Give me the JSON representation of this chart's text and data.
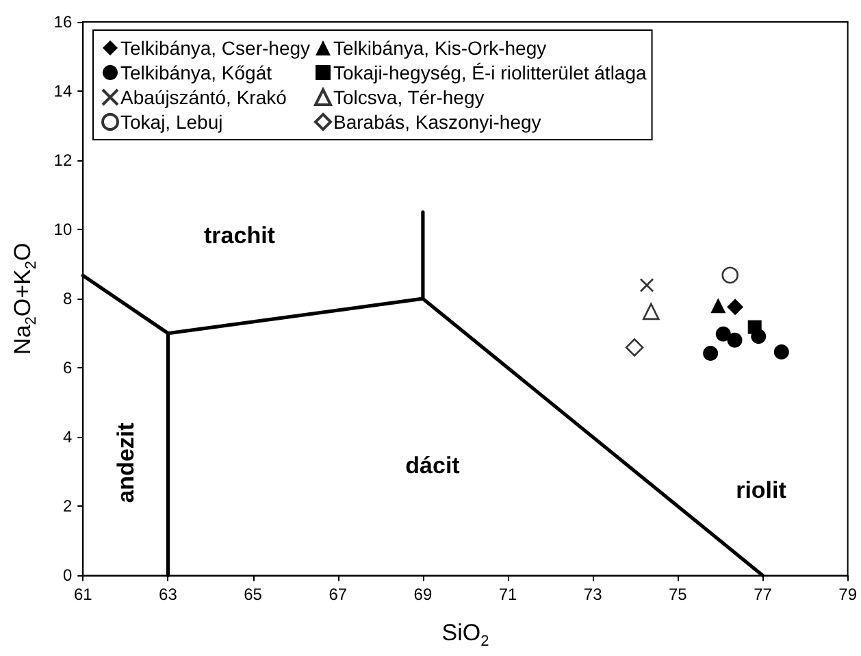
{
  "chart_data": {
    "type": "scatter",
    "xlabel": "SiO$_{2}$",
    "ylabel": "Na$_{2}$O+K$_{2}$O",
    "xlim": [
      61,
      79
    ],
    "xticks": [
      61,
      63,
      65,
      67,
      69,
      71,
      73,
      75,
      77,
      79
    ],
    "ylim": [
      0,
      16
    ],
    "yticks": [
      0,
      2,
      4,
      6,
      8,
      10,
      12,
      14,
      16
    ],
    "grid": false,
    "legend": "top left",
    "series": [
      {
        "name": "Telkibánya, Cser-hegy",
        "color": "#000000",
        "marker": "diamond",
        "x": [
          76.35
        ],
        "values": [
          7.76
        ]
      },
      {
        "name": "Telkibánya, Kőgát",
        "color": "#000000",
        "marker": "circle",
        "x": [
          76.07,
          76.34,
          76.9,
          75.77,
          77.44
        ],
        "values": [
          6.98,
          6.8,
          6.91,
          6.42,
          6.46
        ]
      },
      {
        "name": "Abaújszántó, Krakó",
        "color": "#000000",
        "marker": "cross",
        "x": [
          74.27
        ],
        "values": [
          8.39
        ]
      },
      {
        "name": "Tokaj, Lebuj",
        "color": "#000000",
        "marker": "circle-open",
        "x": [
          76.23
        ],
        "values": [
          8.68
        ]
      },
      {
        "name": "Telkibánya, Kis-Ork-hegy",
        "color": "#000000",
        "marker": "triangle",
        "x": [
          75.95
        ],
        "values": [
          7.8
        ]
      },
      {
        "name": "Tokaji-hegység, É-i riolitterület átlaga",
        "color": "#000000",
        "marker": "square",
        "x": [
          76.81
        ],
        "values": [
          7.18
        ]
      },
      {
        "name": "Tolcsva, Tér-hegy",
        "color": "#000000",
        "marker": "triangle-open",
        "x": [
          74.37
        ],
        "values": [
          7.63
        ]
      },
      {
        "name": "Barabás, Kaszonyi-hegy",
        "color": "#000000",
        "marker": "diamond-open",
        "x": [
          73.98
        ],
        "values": [
          6.59
        ]
      },
      {
        "type": "line",
        "color": "#000000",
        "marker": "none",
        "x": [
          61,
          63,
          63
        ],
        "values": [
          8.67,
          7,
          0
        ]
      },
      {
        "type": "line",
        "color": "#000000",
        "marker": "none",
        "x": [
          63,
          69
        ],
        "values": [
          7,
          8
        ]
      },
      {
        "type": "line",
        "color": "#000000",
        "marker": "none",
        "x": [
          69,
          69,
          77
        ],
        "values": [
          10.5,
          8,
          0
        ]
      }
    ],
    "annotations": [
      "trachit",
      "andezit",
      "dácit",
      "riolit"
    ]
  }
}
